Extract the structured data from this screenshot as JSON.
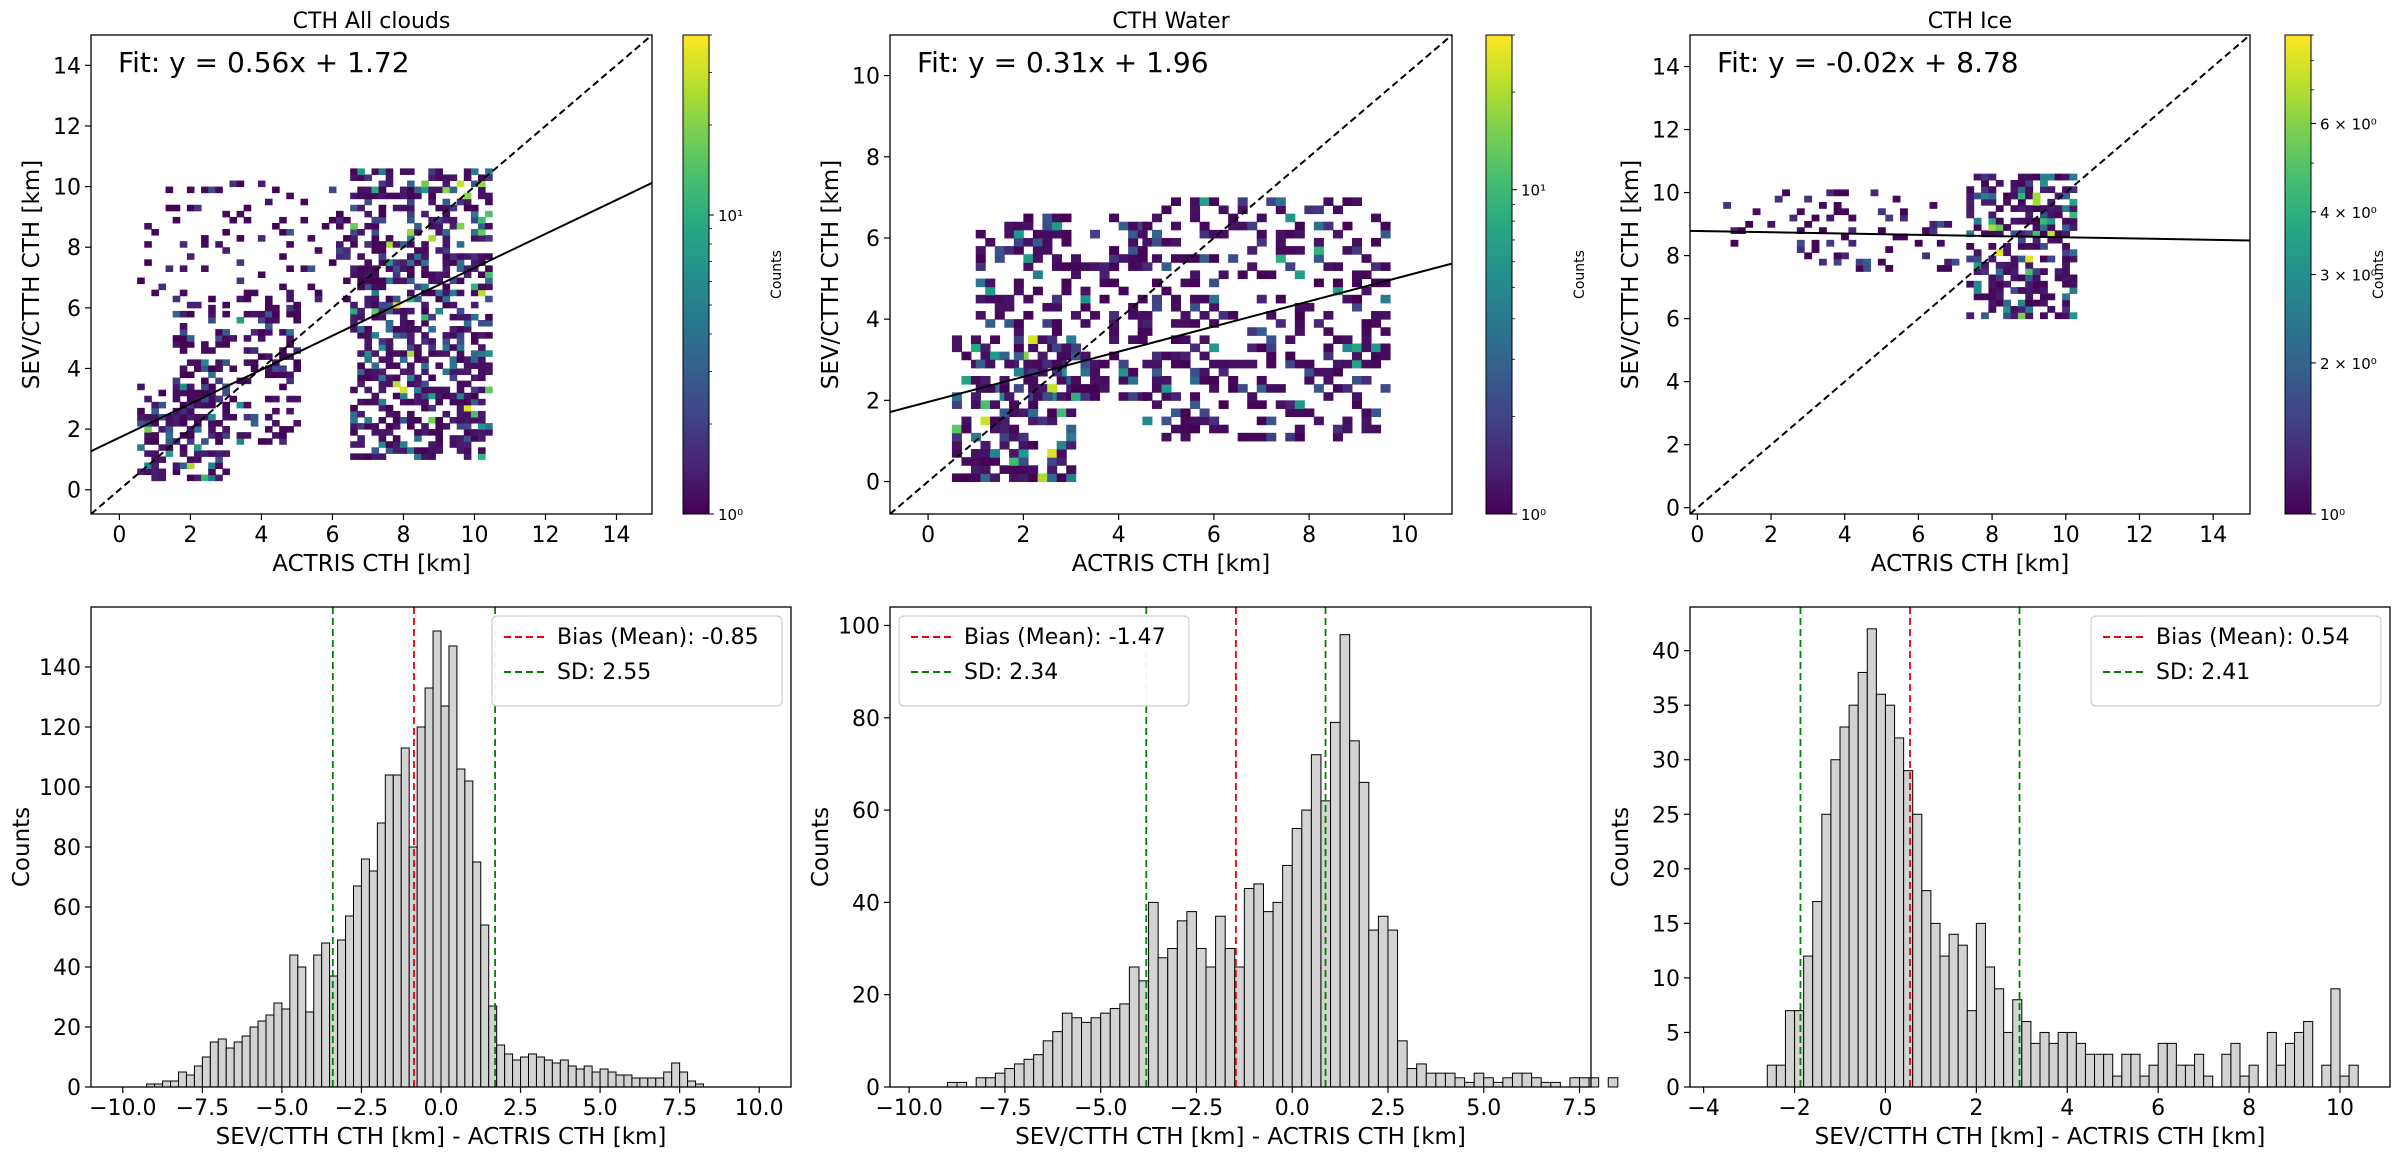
{
  "chart_data": [
    {
      "type": "heatmap",
      "title": "CTH All clouds",
      "xlabel": "ACTRIS CTH [km]",
      "ylabel": "SEV/CTTH CTH [km]",
      "xlim": [
        -0.8,
        15
      ],
      "ylim": [
        -0.8,
        15
      ],
      "xticks": [
        0,
        2,
        4,
        6,
        8,
        10,
        12,
        14
      ],
      "yticks": [
        0,
        2,
        4,
        6,
        8,
        10,
        12,
        14
      ],
      "fit_label": "Fit: y = 0.56x + 1.72",
      "fit": {
        "slope": 0.56,
        "intercept": 1.72
      },
      "one_to_one_line": true,
      "colorbar": {
        "label": "Counts",
        "scale": "log",
        "range": [
          1,
          40
        ],
        "ticks": [
          "10⁰",
          "10¹"
        ]
      },
      "point_clusters": [
        {
          "x_range": [
            0.5,
            3.0
          ],
          "y_range": [
            0.3,
            3.5
          ],
          "density": "high"
        },
        {
          "x_range": [
            1.5,
            5.0
          ],
          "y_range": [
            1.5,
            6.0
          ],
          "density": "medium"
        },
        {
          "x_range": [
            6.5,
            10.3
          ],
          "y_range": [
            1.0,
            10.5
          ],
          "density": "high"
        },
        {
          "x_range": [
            0.5,
            7.5
          ],
          "y_range": [
            6.0,
            10.0
          ],
          "density": "low"
        }
      ]
    },
    {
      "type": "heatmap",
      "title": "CTH Water",
      "xlabel": "ACTRIS CTH [km]",
      "ylabel": "SEV/CTTH CTH [km]",
      "xlim": [
        -0.8,
        11
      ],
      "ylim": [
        -0.8,
        11
      ],
      "xticks": [
        0,
        2,
        4,
        6,
        8,
        10
      ],
      "yticks": [
        0,
        2,
        4,
        6,
        8,
        10
      ],
      "fit_label": "Fit: y = 0.31x + 1.96",
      "fit": {
        "slope": 0.31,
        "intercept": 1.96
      },
      "one_to_one_line": true,
      "colorbar": {
        "label": "Counts",
        "scale": "log",
        "range": [
          1,
          30
        ],
        "ticks": [
          "10⁰",
          "10¹"
        ]
      },
      "point_clusters": [
        {
          "x_range": [
            0.5,
            3.0
          ],
          "y_range": [
            0.0,
            3.5
          ],
          "density": "high"
        },
        {
          "x_range": [
            1.0,
            4.5
          ],
          "y_range": [
            2.0,
            6.5
          ],
          "density": "medium"
        },
        {
          "x_range": [
            4.5,
            9.5
          ],
          "y_range": [
            1.0,
            7.0
          ],
          "density": "medium"
        }
      ]
    },
    {
      "type": "heatmap",
      "title": "CTH Ice",
      "xlabel": "ACTRIS CTH [km]",
      "ylabel": "SEV/CTTH CTH [km]",
      "xlim": [
        -0.2,
        15
      ],
      "ylim": [
        -0.2,
        15
      ],
      "xticks": [
        0,
        2,
        4,
        6,
        8,
        10,
        12,
        14
      ],
      "yticks": [
        0,
        2,
        4,
        6,
        8,
        10,
        12,
        14
      ],
      "fit_label": "Fit: y = -0.02x + 8.78",
      "fit": {
        "slope": -0.02,
        "intercept": 8.78
      },
      "one_to_one_line": true,
      "colorbar": {
        "label": "Counts",
        "scale": "log",
        "range": [
          1,
          9
        ],
        "ticks": [
          "10⁰",
          "2 × 10⁰",
          "3 × 10⁰",
          "4 × 10⁰",
          "6 × 10⁰"
        ]
      },
      "point_clusters": [
        {
          "x_range": [
            7.3,
            10.2
          ],
          "y_range": [
            6.0,
            10.5
          ],
          "density": "high"
        },
        {
          "x_range": [
            0.7,
            7.0
          ],
          "y_range": [
            7.5,
            10.0
          ],
          "density": "low"
        }
      ]
    },
    {
      "type": "bar",
      "subtype": "histogram",
      "xlabel": "SEV/CTTH CTH [km] - ACTRIS CTH [km]",
      "ylabel": "Counts",
      "xlim": [
        -11,
        11
      ],
      "ylim": [
        0,
        160
      ],
      "xticks": [
        -10.0,
        -7.5,
        -5.0,
        -2.5,
        0.0,
        2.5,
        5.0,
        7.5,
        10.0
      ],
      "yticks": [
        0,
        20,
        40,
        60,
        80,
        100,
        120,
        140
      ],
      "bin_start": -9.25,
      "bin_width": 0.25,
      "values": [
        1,
        1,
        2,
        2,
        5,
        4,
        7,
        10,
        15,
        16,
        13,
        15,
        17,
        20,
        22,
        24,
        28,
        26,
        44,
        40,
        25,
        44,
        48,
        37,
        49,
        57,
        67,
        76,
        72,
        88,
        104,
        104,
        113,
        80,
        120,
        133,
        152,
        127,
        147,
        106,
        102,
        75,
        54,
        27,
        14,
        11,
        9,
        10,
        11,
        10,
        9,
        8,
        9,
        7,
        6,
        7,
        5,
        6,
        5,
        4,
        4,
        3,
        3,
        3,
        3,
        5,
        8,
        5,
        2,
        1
      ],
      "bias": -0.85,
      "sd": 2.55,
      "sd_lines": [
        -3.4,
        1.7
      ],
      "legend": [
        "Bias (Mean): -0.85",
        "SD: 2.55"
      ],
      "legend_position": "top-right"
    },
    {
      "type": "bar",
      "subtype": "histogram",
      "xlabel": "SEV/CTTH CTH [km] - ACTRIS CTH [km]",
      "ylabel": "Counts",
      "xlim": [
        -10.5,
        7.8
      ],
      "ylim": [
        0,
        104
      ],
      "xticks": [
        -10.0,
        -7.5,
        -5.0,
        -2.5,
        0.0,
        2.5,
        5.0,
        7.5
      ],
      "yticks": [
        0,
        20,
        40,
        60,
        80,
        100
      ],
      "bin_start": -9.0,
      "bin_width": 0.25,
      "values": [
        1,
        1,
        0,
        2,
        2,
        3,
        4,
        5,
        6,
        7,
        10,
        12,
        16,
        15,
        14,
        15,
        16,
        17,
        18,
        26,
        23,
        40,
        28,
        30,
        36,
        38,
        30,
        26,
        37,
        30,
        26,
        43,
        44,
        38,
        40,
        48,
        56,
        60,
        72,
        62,
        79,
        98,
        75,
        66,
        34,
        37,
        34,
        10,
        4,
        5,
        3,
        3,
        3,
        2,
        1,
        3,
        2,
        1,
        2,
        3,
        3,
        2,
        1,
        1,
        0,
        2,
        2,
        2,
        0,
        2
      ],
      "bias": -1.47,
      "sd": 2.34,
      "sd_lines": [
        -3.81,
        0.87
      ],
      "legend": [
        "Bias (Mean): -1.47",
        "SD: 2.34"
      ],
      "legend_position": "top-left"
    },
    {
      "type": "bar",
      "subtype": "histogram",
      "xlabel": "SEV/CTTH CTH [km] - ACTRIS CTH [km]",
      "ylabel": "Counts",
      "xlim": [
        -4.3,
        11.1
      ],
      "ylim": [
        0,
        44
      ],
      "xticks": [
        -4,
        -2,
        0,
        2,
        4,
        6,
        8,
        10
      ],
      "yticks": [
        0,
        5,
        10,
        15,
        20,
        25,
        30,
        35,
        40
      ],
      "bin_start": -2.6,
      "bin_width": 0.2,
      "values": [
        2,
        2,
        7,
        7,
        12,
        17,
        25,
        30,
        33,
        35,
        38,
        42,
        36,
        35,
        32,
        29,
        25,
        18,
        15,
        12,
        14,
        13,
        7,
        15,
        11,
        9,
        5,
        8,
        6,
        4,
        5,
        4,
        5,
        5,
        4,
        3,
        3,
        3,
        1,
        3,
        3,
        1,
        2,
        4,
        4,
        2,
        2,
        3,
        1,
        0,
        3,
        4,
        1,
        2,
        0,
        5,
        2,
        4,
        5,
        6,
        0,
        2,
        9,
        1,
        2,
        0
      ],
      "bias": 0.54,
      "sd": 2.41,
      "sd_lines": [
        -1.87,
        2.95
      ],
      "legend": [
        "Bias (Mean): 0.54",
        "SD: 2.41"
      ],
      "legend_position": "top-right"
    }
  ]
}
